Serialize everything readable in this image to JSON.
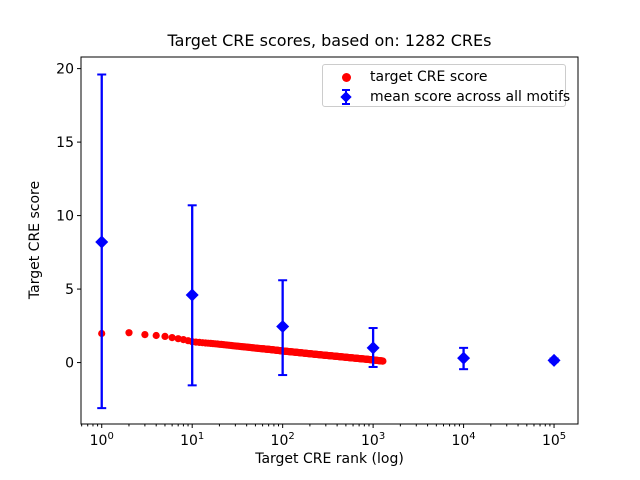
{
  "chart_data": {
    "type": "scatter",
    "title": "Target CRE scores, based on: 1282 CREs",
    "xlabel": "Target CRE rank (log)",
    "ylabel": "Target CRE score",
    "xscale": "log",
    "grid": false,
    "xlim": [
      0.59,
      184000
    ],
    "ylim": [
      -4.18,
      20.79
    ],
    "x_ticks": [
      1,
      10,
      100,
      1000,
      10000,
      100000
    ],
    "x_tick_base": "10",
    "x_tick_exponents": [
      "0",
      "1",
      "2",
      "3",
      "4",
      "5"
    ],
    "y_ticks": [
      0,
      5,
      10,
      15,
      20
    ],
    "legend_position": "upper right",
    "colors": {
      "target_series": "#ff0000",
      "mean_series": "#0000ff",
      "axis": "#000000",
      "legend_border": "#cccccc",
      "background": "#ffffff"
    },
    "series": [
      {
        "name": "target CRE score",
        "type": "scatter",
        "marker": "circle",
        "color": "#ff0000",
        "n_points": 1282,
        "x_range": [
          1,
          1282
        ],
        "sampled_points": [
          [
            1,
            1.98
          ],
          [
            2,
            2.03
          ],
          [
            3,
            1.9
          ],
          [
            4,
            1.84
          ],
          [
            5,
            1.78
          ],
          [
            6,
            1.7
          ],
          [
            8,
            1.56
          ],
          [
            10,
            1.42
          ],
          [
            13,
            1.35
          ],
          [
            17,
            1.29
          ],
          [
            22,
            1.22
          ],
          [
            30,
            1.13
          ],
          [
            40,
            1.05
          ],
          [
            55,
            0.96
          ],
          [
            75,
            0.88
          ],
          [
            100,
            0.79
          ],
          [
            140,
            0.7
          ],
          [
            200,
            0.6
          ],
          [
            280,
            0.51
          ],
          [
            400,
            0.42
          ],
          [
            560,
            0.33
          ],
          [
            800,
            0.24
          ],
          [
            1000,
            0.18
          ],
          [
            1282,
            0.1
          ]
        ]
      },
      {
        "name": "mean score across all motifs",
        "type": "errorbar",
        "marker": "diamond",
        "color": "#0000ff",
        "points": [
          {
            "x": 1,
            "y": 8.2,
            "y_lo": -3.1,
            "y_hi": 19.6
          },
          {
            "x": 10,
            "y": 4.6,
            "y_lo": -1.55,
            "y_hi": 10.7
          },
          {
            "x": 100,
            "y": 2.45,
            "y_lo": -0.85,
            "y_hi": 5.6
          },
          {
            "x": 1000,
            "y": 1.0,
            "y_lo": -0.3,
            "y_hi": 2.35
          },
          {
            "x": 10000,
            "y": 0.3,
            "y_lo": -0.45,
            "y_hi": 1.0
          },
          {
            "x": 100000,
            "y": 0.15,
            "y_lo": 0.03,
            "y_hi": 0.27
          }
        ]
      }
    ]
  }
}
